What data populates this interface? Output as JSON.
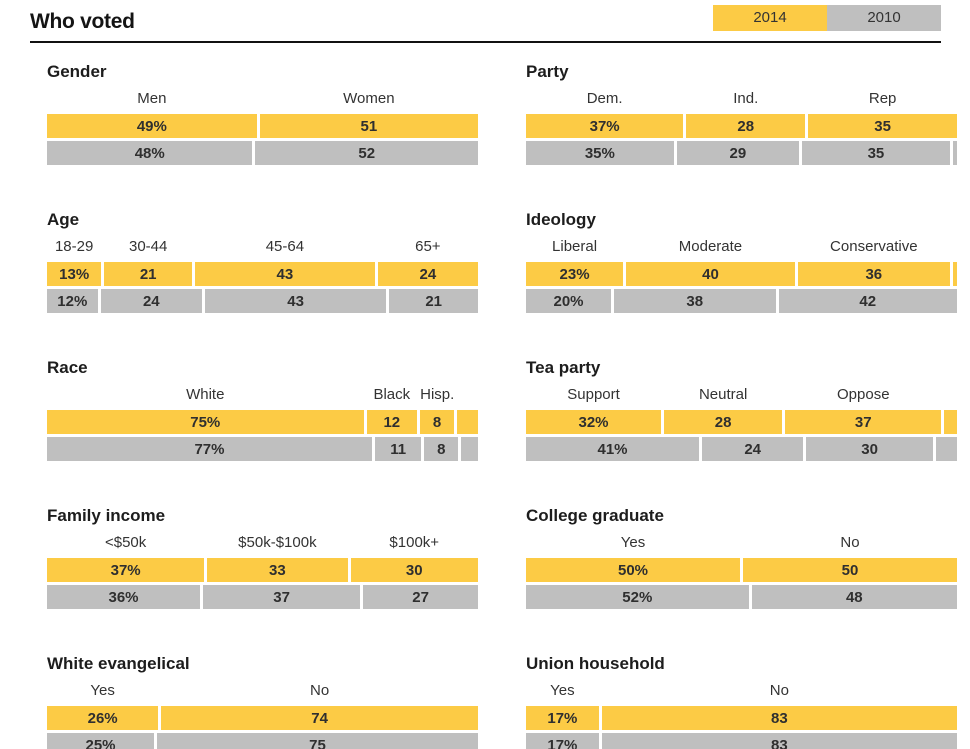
{
  "header": {
    "title": "Who voted",
    "legend": [
      {
        "label": "2014",
        "color": "#fccb45"
      },
      {
        "label": "2010",
        "color": "#bfbfbf"
      }
    ]
  },
  "chart_data": {
    "type": "bar",
    "subtype": "horizontal-stacked-100-percent",
    "title": "Who voted",
    "legend_position": "top-right",
    "series_names": [
      "2014",
      "2010"
    ],
    "colors": {
      "2014": "#fccb45",
      "2010": "#bfbfbf"
    },
    "note": "Each bar normalized to 100%; unlabeled trailing slivers are remainders where shown values sum to less than 100. First value of each bar carries a % sign.",
    "sections": [
      {
        "title": "Gender",
        "categories": [
          "Men",
          "Women"
        ],
        "values_2014": [
          49,
          51
        ],
        "values_2010": [
          48,
          52
        ]
      },
      {
        "title": "Party",
        "categories": [
          "Dem.",
          "Ind.",
          "Rep"
        ],
        "values_2014": [
          37,
          28,
          35
        ],
        "values_2010": [
          35,
          29,
          35
        ]
      },
      {
        "title": "Age",
        "categories": [
          "18-29",
          "30-44",
          "45-64",
          "65+"
        ],
        "values_2014": [
          13,
          21,
          43,
          24
        ],
        "values_2010": [
          12,
          24,
          43,
          21
        ]
      },
      {
        "title": "Ideology",
        "categories": [
          "Liberal",
          "Moderate",
          "Conservative"
        ],
        "values_2014": [
          23,
          40,
          36
        ],
        "values_2010": [
          20,
          38,
          42
        ]
      },
      {
        "title": "Race",
        "categories": [
          "White",
          "Black",
          "Hisp."
        ],
        "values_2014": [
          75,
          12,
          8
        ],
        "values_2010": [
          77,
          11,
          8
        ]
      },
      {
        "title": "Tea party",
        "categories": [
          "Support",
          "Neutral",
          "Oppose"
        ],
        "values_2014": [
          32,
          28,
          37
        ],
        "values_2010": [
          41,
          24,
          30
        ]
      },
      {
        "title": "Family income",
        "categories": [
          "<$50k",
          "$50k-$100k",
          "$100k+"
        ],
        "values_2014": [
          37,
          33,
          30
        ],
        "values_2010": [
          36,
          37,
          27
        ]
      },
      {
        "title": "College graduate",
        "categories": [
          "Yes",
          "No"
        ],
        "values_2014": [
          50,
          50
        ],
        "values_2010": [
          52,
          48
        ]
      },
      {
        "title": "White evangelical",
        "categories": [
          "Yes",
          "No"
        ],
        "values_2014": [
          26,
          74
        ],
        "values_2010": [
          25,
          75
        ]
      },
      {
        "title": "Union household",
        "categories": [
          "Yes",
          "No"
        ],
        "values_2014": [
          17,
          83
        ],
        "values_2010": [
          17,
          83
        ]
      }
    ]
  }
}
